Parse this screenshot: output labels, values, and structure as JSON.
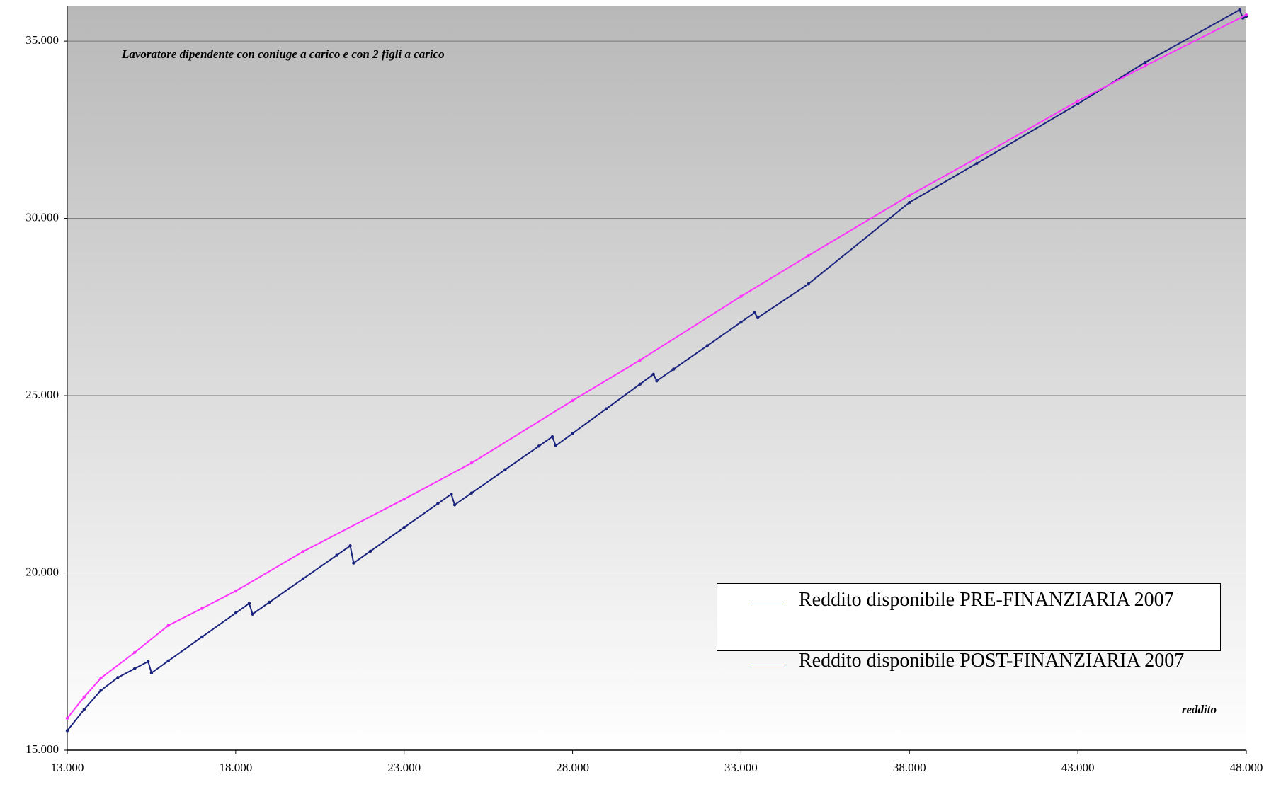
{
  "chart_data": {
    "type": "line",
    "title": "Lavoratore dipendente con coniuge a carico e con 2 figli a carico",
    "x_label": "reddito",
    "xlim": [
      13000,
      48000
    ],
    "ylim": [
      15000,
      36000
    ],
    "xticks": [
      {
        "value": 13000,
        "label": "13.000"
      },
      {
        "value": 18000,
        "label": "18.000"
      },
      {
        "value": 23000,
        "label": "23.000"
      },
      {
        "value": 28000,
        "label": "28.000"
      },
      {
        "value": 33000,
        "label": "33.000"
      },
      {
        "value": 38000,
        "label": "38.000"
      },
      {
        "value": 43000,
        "label": "43.000"
      },
      {
        "value": 48000,
        "label": "48.000"
      }
    ],
    "yticks": [
      {
        "value": 15000,
        "label": "15.000"
      },
      {
        "value": 20000,
        "label": "20.000"
      },
      {
        "value": 25000,
        "label": "25.000"
      },
      {
        "value": 30000,
        "label": "30.000"
      },
      {
        "value": 35000,
        "label": "35.000"
      }
    ],
    "grid": true,
    "series": [
      {
        "name": "Reddito disponibile PRE-FINANZIARIA 2007",
        "color": "#1a237e",
        "x": [
          13000,
          13500,
          14000,
          14500,
          15000,
          15400,
          15500,
          16000,
          17000,
          18000,
          18400,
          18500,
          19000,
          20000,
          21000,
          21400,
          21500,
          22000,
          23000,
          24000,
          24400,
          24500,
          25000,
          26000,
          27000,
          27400,
          27500,
          28000,
          29000,
          30000,
          30400,
          30500,
          31000,
          32000,
          33000,
          33400,
          33500,
          35000,
          38000,
          40000,
          43000,
          45000,
          47800,
          47900,
          48000
        ],
        "values": [
          15550,
          16150,
          16690,
          17050,
          17300,
          17500,
          17180,
          17518,
          18194,
          18870,
          19141,
          18840,
          19172,
          19835,
          20499,
          20764,
          20278,
          20613,
          21283,
          21953,
          22222,
          21921,
          22252,
          22914,
          23577,
          23842,
          23588,
          23935,
          24629,
          25324,
          25602,
          25417,
          25748,
          26410,
          27073,
          27338,
          27199,
          28150,
          30450,
          31550,
          33230,
          34400,
          35880,
          35650,
          35700
        ]
      },
      {
        "name": "Reddito disponibile POST-FINANZIARIA 2007",
        "color": "#ff33ff",
        "x": [
          13000,
          13500,
          14000,
          15000,
          16000,
          17000,
          18000,
          20000,
          23000,
          25000,
          28000,
          30000,
          33000,
          35000,
          38000,
          40000,
          43000,
          45000,
          48000
        ],
        "values": [
          15900,
          16500,
          17037,
          17755,
          18519,
          19000,
          19490,
          20602,
          22083,
          23100,
          24861,
          26000,
          27801,
          28950,
          30648,
          31700,
          33310,
          34300,
          35741
        ]
      }
    ]
  }
}
